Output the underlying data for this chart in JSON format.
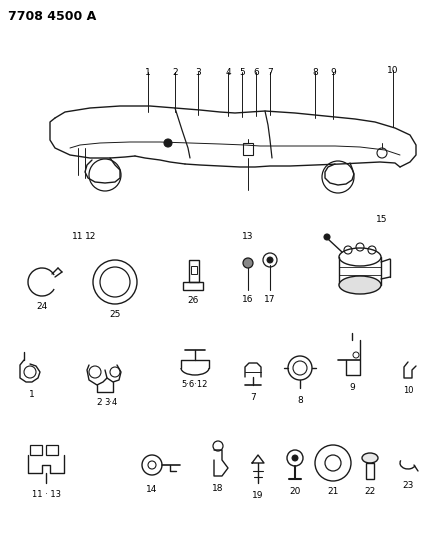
{
  "title": "7708 4500 A",
  "title_fontsize": 9,
  "background_color": "#ffffff",
  "figsize": [
    4.28,
    5.33
  ],
  "dpi": 100,
  "lc": "#1a1a1a",
  "label_fontsize": 6.0,
  "label_color": "#000000"
}
